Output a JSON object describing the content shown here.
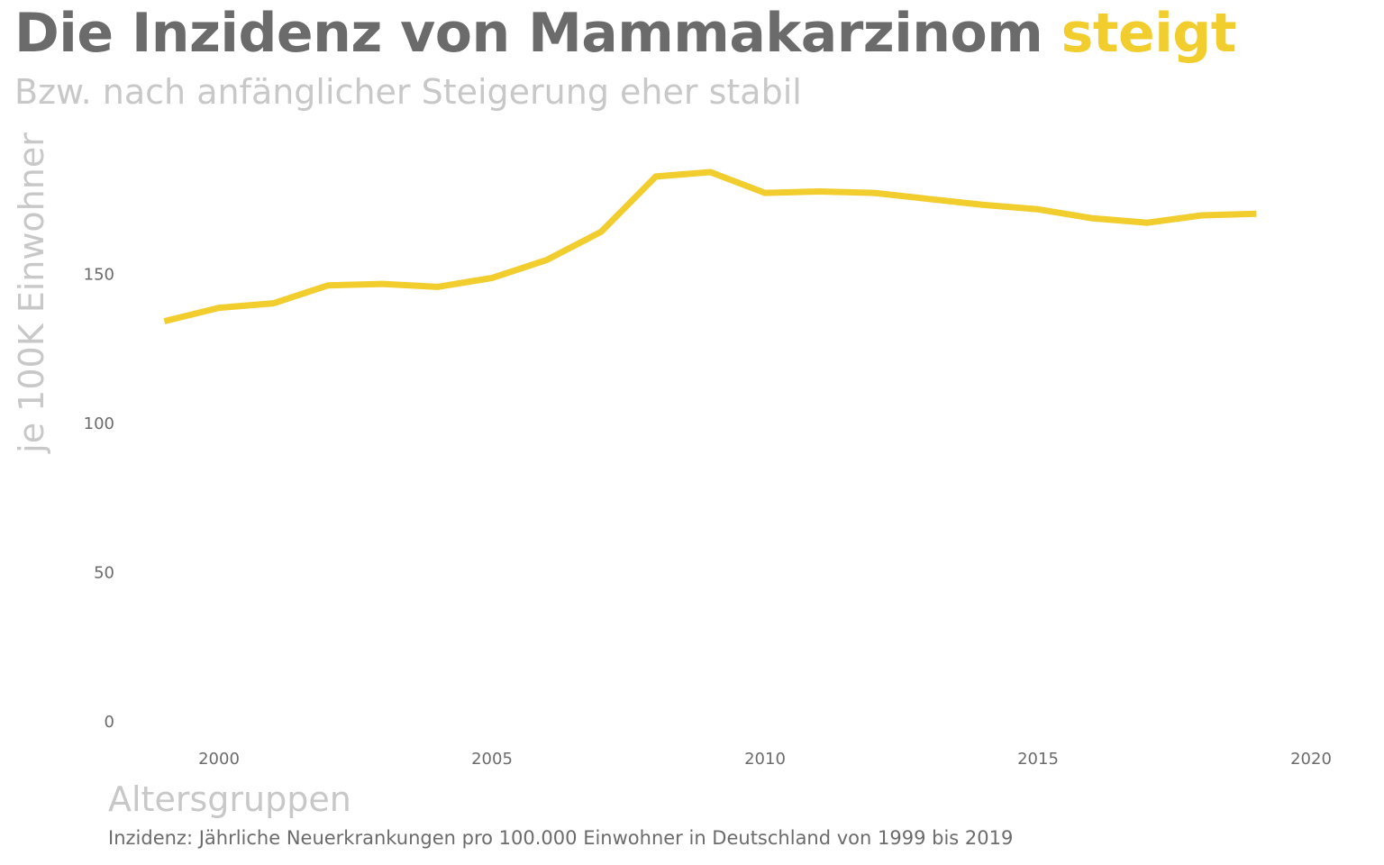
{
  "header": {
    "title_main": "Die Inzidenz von Mammakarzinom",
    "title_accent": "steigt",
    "subtitle": "Bzw. nach anfänglicher Steigerung eher stabil"
  },
  "caption": "Inzidenz: Jährliche Neuerkrankungen pro 100.000 Einwohner in Deutschland von 1999 bis 2019",
  "colors": {
    "accent": "#f2cd2e",
    "title": "#6b6b6b",
    "muted": "#c8c8c8",
    "tick": "#6b6b6b"
  },
  "chart_data": {
    "type": "line",
    "title": "Die Inzidenz von Mammakarzinom steigt",
    "subtitle": "Bzw. nach anfänglicher Steigerung eher stabil",
    "xlabel": "Altersgruppen",
    "ylabel": "je 100K Einwohner",
    "xlim": [
      1998,
      2020
    ],
    "ylim": [
      0,
      195
    ],
    "xticks": [
      2000,
      2005,
      2010,
      2015,
      2020
    ],
    "yticks": [
      0,
      50,
      100,
      150
    ],
    "grid": false,
    "legend": "none",
    "series": [
      {
        "color": "#f2cd2e",
        "x": [
          1999,
          2000,
          2001,
          2002,
          2003,
          2004,
          2005,
          2006,
          2007,
          2008,
          2009,
          2010,
          2011,
          2012,
          2013,
          2014,
          2015,
          2016,
          2017,
          2018,
          2019
        ],
        "y": [
          134,
          138.5,
          140,
          146,
          146.5,
          145.5,
          148.5,
          154.5,
          164,
          182.5,
          184,
          177,
          177.5,
          177,
          175,
          173,
          171.5,
          168.5,
          167,
          169.5,
          170
        ]
      }
    ]
  }
}
